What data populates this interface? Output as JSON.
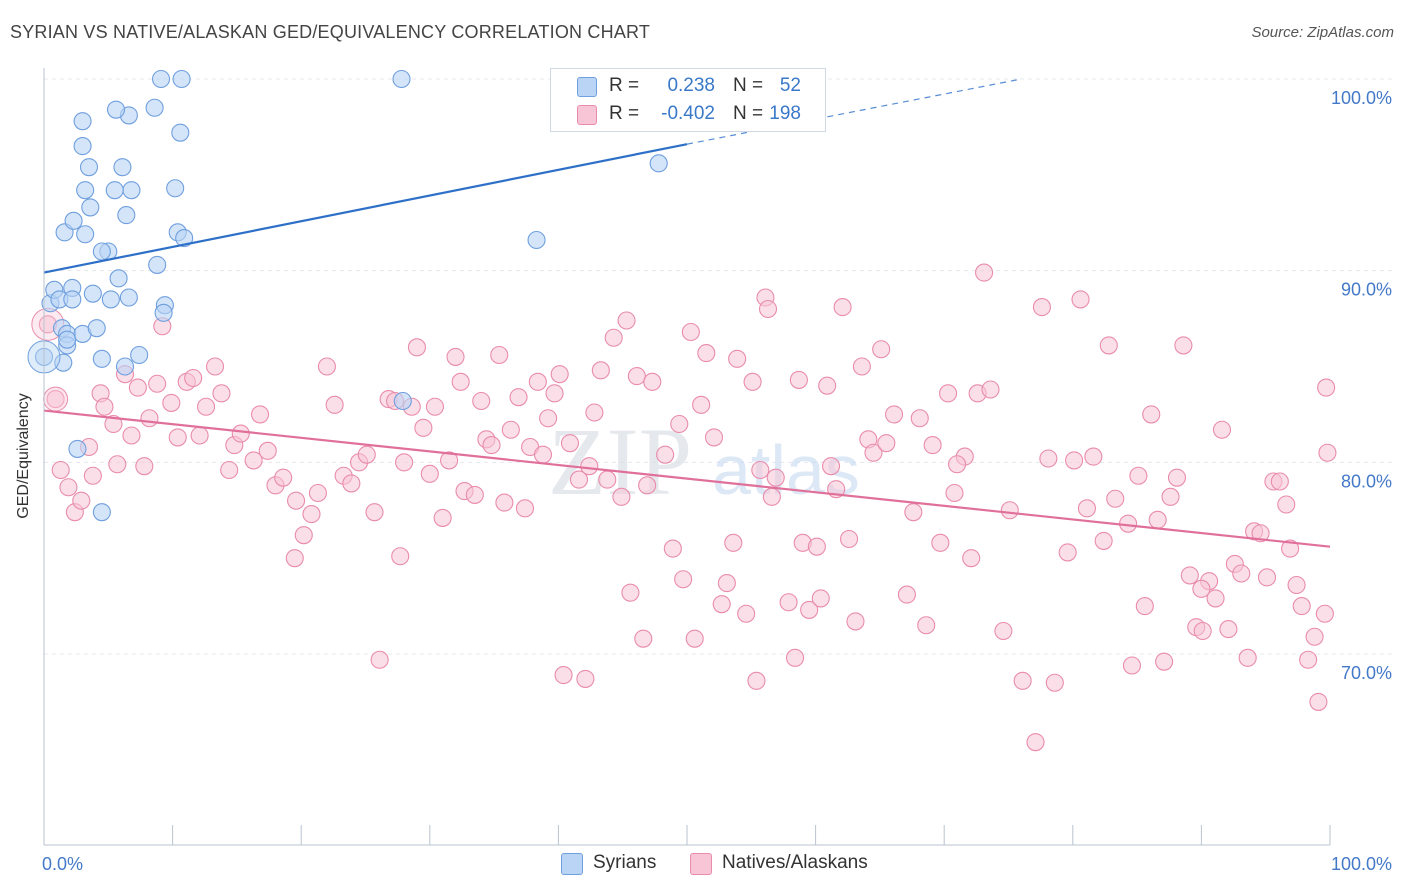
{
  "title": "SYRIAN VS NATIVE/ALASKAN GED/EQUIVALENCY CORRELATION CHART",
  "source": "Source: ZipAtlas.com",
  "watermark": {
    "part1": "ZIP",
    "part2": "atlas"
  },
  "legend": {
    "r_label": "R =",
    "n_label": "N =",
    "series": [
      {
        "r": "0.238",
        "n": "52"
      },
      {
        "r": "-0.402",
        "n": "198"
      }
    ]
  },
  "chart_data": {
    "type": "scatter",
    "title": "SYRIAN VS NATIVE/ALASKAN GED/EQUIVALENCY CORRELATION CHART",
    "xlabel": "",
    "ylabel": "GED/Equivalency",
    "xlim": [
      0,
      100
    ],
    "ylim": [
      60,
      101.5
    ],
    "x_tick_labels": [
      "0.0%",
      "100.0%"
    ],
    "y_ticks": [
      {
        "value": 100,
        "label": "100.0%"
      },
      {
        "value": 90,
        "label": "90.0%"
      },
      {
        "value": 80,
        "label": "80.0%"
      },
      {
        "value": 70,
        "label": "70.0%"
      }
    ],
    "grid": true,
    "colors": {
      "syrians_fill": "#b9d4f5",
      "syrians_edge": "#6f9fde",
      "syrians_line": "#2e70c8",
      "natives_fill": "#f8c5d6",
      "natives_edge": "#e98cab",
      "natives_line": "#e0709a",
      "axis_text": "#4479c8",
      "grid": "#e4e8ee"
    },
    "series": [
      {
        "name": "Syrians",
        "trend": {
          "x": [
            0,
            50
          ],
          "y": [
            89.9,
            96.6
          ],
          "dashed_to": [
            76,
            100
          ]
        },
        "points": [
          [
            0,
            85.5
          ],
          [
            0.5,
            88.3
          ],
          [
            0.8,
            89
          ],
          [
            1.2,
            88.5
          ],
          [
            1.4,
            87
          ],
          [
            1.8,
            86.7
          ],
          [
            1.8,
            86.1
          ],
          [
            1.5,
            85.2
          ],
          [
            2.2,
            89.1
          ],
          [
            2.2,
            88.5
          ],
          [
            1.6,
            92
          ],
          [
            2.3,
            92.6
          ],
          [
            3.2,
            91.9
          ],
          [
            2.6,
            80.7
          ],
          [
            3.0,
            86.7
          ],
          [
            3.8,
            88.8
          ],
          [
            4.1,
            87
          ],
          [
            4.5,
            85.4
          ],
          [
            5.2,
            88.5
          ],
          [
            5.8,
            89.6
          ],
          [
            6.3,
            85
          ],
          [
            6.4,
            92.9
          ],
          [
            6.6,
            88.6
          ],
          [
            7.4,
            85.6
          ],
          [
            8.8,
            90.3
          ],
          [
            9.4,
            88.2
          ],
          [
            9.3,
            87.8
          ],
          [
            10.2,
            94.3
          ],
          [
            10.4,
            92
          ],
          [
            10.9,
            91.7
          ],
          [
            9.1,
            100
          ],
          [
            10.7,
            100
          ],
          [
            27.8,
            100
          ],
          [
            10.6,
            97.2
          ],
          [
            8.6,
            98.5
          ],
          [
            6.6,
            98.1
          ],
          [
            6.8,
            94.2
          ],
          [
            5.6,
            98.4
          ],
          [
            6.1,
            95.4
          ],
          [
            3.6,
            93.3
          ],
          [
            3.2,
            94.2
          ],
          [
            3.5,
            95.4
          ],
          [
            3.0,
            96.5
          ],
          [
            3.0,
            97.8
          ],
          [
            5.5,
            94.2
          ],
          [
            5.0,
            91
          ],
          [
            4.5,
            91
          ],
          [
            4.5,
            77.4
          ],
          [
            27.9,
            83.2
          ],
          [
            47.8,
            95.6
          ],
          [
            38.3,
            91.6
          ],
          [
            1.8,
            86.4
          ]
        ]
      },
      {
        "name": "Natives/Alaskans",
        "trend": {
          "x": [
            0,
            100
          ],
          "y": [
            82.7,
            75.6
          ]
        },
        "points": [
          [
            0.3,
            87.2
          ],
          [
            0.9,
            83.3
          ],
          [
            1.3,
            79.6
          ],
          [
            1.9,
            78.7
          ],
          [
            2.4,
            77.4
          ],
          [
            2.9,
            78
          ],
          [
            3.5,
            80.8
          ],
          [
            3.8,
            79.3
          ],
          [
            4.4,
            83.6
          ],
          [
            4.7,
            82.9
          ],
          [
            5.4,
            82
          ],
          [
            5.7,
            79.9
          ],
          [
            6.3,
            84.6
          ],
          [
            6.8,
            81.4
          ],
          [
            7.3,
            83.9
          ],
          [
            7.8,
            79.8
          ],
          [
            8.2,
            82.3
          ],
          [
            8.8,
            84.1
          ],
          [
            9.2,
            87.1
          ],
          [
            9.9,
            83.1
          ],
          [
            10.4,
            81.3
          ],
          [
            11.1,
            84.2
          ],
          [
            11.6,
            84.4
          ],
          [
            12.1,
            81.4
          ],
          [
            12.6,
            82.9
          ],
          [
            13.3,
            85
          ],
          [
            13.8,
            83.6
          ],
          [
            14.4,
            79.6
          ],
          [
            14.8,
            80.9
          ],
          [
            15.3,
            81.5
          ],
          [
            16.3,
            80.1
          ],
          [
            16.8,
            82.5
          ],
          [
            17.4,
            80.6
          ],
          [
            18.0,
            78.8
          ],
          [
            18.6,
            79.2
          ],
          [
            19.5,
            75
          ],
          [
            19.6,
            78
          ],
          [
            20.2,
            76.2
          ],
          [
            20.8,
            77.3
          ],
          [
            21.3,
            78.4
          ],
          [
            22.0,
            85
          ],
          [
            22.6,
            83
          ],
          [
            23.3,
            79.3
          ],
          [
            23.9,
            78.9
          ],
          [
            24.5,
            80
          ],
          [
            25.1,
            80.4
          ],
          [
            25.7,
            77.4
          ],
          [
            26.1,
            69.7
          ],
          [
            26.8,
            83.3
          ],
          [
            27.3,
            83.2
          ],
          [
            27.7,
            75.1
          ],
          [
            28.0,
            80
          ],
          [
            28.6,
            82.9
          ],
          [
            29.0,
            86
          ],
          [
            29.5,
            81.8
          ],
          [
            30.0,
            79.4
          ],
          [
            30.4,
            82.9
          ],
          [
            31.0,
            77.1
          ],
          [
            31.5,
            80.1
          ],
          [
            32.0,
            85.5
          ],
          [
            32.4,
            84.2
          ],
          [
            32.7,
            78.5
          ],
          [
            33.5,
            78.3
          ],
          [
            34.0,
            83.2
          ],
          [
            34.4,
            81.2
          ],
          [
            34.8,
            80.9
          ],
          [
            35.4,
            85.6
          ],
          [
            35.8,
            77.9
          ],
          [
            36.3,
            81.7
          ],
          [
            36.9,
            83.4
          ],
          [
            37.4,
            77.6
          ],
          [
            37.8,
            80.8
          ],
          [
            38.4,
            84.2
          ],
          [
            38.8,
            80.4
          ],
          [
            39.2,
            82.3
          ],
          [
            39.7,
            83.6
          ],
          [
            40.1,
            84.6
          ],
          [
            40.4,
            68.9
          ],
          [
            40.9,
            81
          ],
          [
            41.6,
            79.1
          ],
          [
            42.1,
            68.7
          ],
          [
            42.4,
            79.8
          ],
          [
            42.8,
            82.6
          ],
          [
            43.3,
            84.8
          ],
          [
            43.8,
            79.1
          ],
          [
            44.3,
            86.5
          ],
          [
            44.9,
            78.2
          ],
          [
            45.3,
            87.4
          ],
          [
            45.6,
            73.2
          ],
          [
            46.1,
            84.5
          ],
          [
            46.6,
            70.8
          ],
          [
            46.9,
            78.8
          ],
          [
            47.3,
            84.2
          ],
          [
            48.3,
            80.4
          ],
          [
            48.9,
            75.5
          ],
          [
            49.4,
            82
          ],
          [
            49.7,
            73.9
          ],
          [
            50.3,
            86.8
          ],
          [
            50.6,
            70.8
          ],
          [
            51.1,
            83
          ],
          [
            51.5,
            85.7
          ],
          [
            52.1,
            81.3
          ],
          [
            52.7,
            72.6
          ],
          [
            53.1,
            73.7
          ],
          [
            53.6,
            75.8
          ],
          [
            53.9,
            85.4
          ],
          [
            54.6,
            72.1
          ],
          [
            55.1,
            84.2
          ],
          [
            55.4,
            68.6
          ],
          [
            55.7,
            79.6
          ],
          [
            56.1,
            88.6
          ],
          [
            56.3,
            88
          ],
          [
            56.6,
            78.2
          ],
          [
            56.9,
            79.2
          ],
          [
            57.9,
            72.7
          ],
          [
            58.4,
            69.8
          ],
          [
            58.7,
            84.3
          ],
          [
            59.0,
            75.8
          ],
          [
            59.5,
            72.3
          ],
          [
            60.1,
            75.6
          ],
          [
            60.4,
            72.9
          ],
          [
            60.9,
            84
          ],
          [
            61.2,
            79.8
          ],
          [
            61.6,
            78.6
          ],
          [
            62.1,
            88.1
          ],
          [
            62.6,
            76
          ],
          [
            63.1,
            71.7
          ],
          [
            63.6,
            85
          ],
          [
            64.1,
            81.2
          ],
          [
            64.5,
            80.5
          ],
          [
            65.1,
            85.9
          ],
          [
            65.5,
            81
          ],
          [
            66.1,
            82.5
          ],
          [
            67.1,
            73.1
          ],
          [
            67.6,
            77.4
          ],
          [
            68.1,
            82.3
          ],
          [
            68.6,
            71.5
          ],
          [
            69.1,
            80.9
          ],
          [
            69.7,
            75.8
          ],
          [
            70.3,
            83.6
          ],
          [
            70.8,
            78.4
          ],
          [
            71.6,
            80.3
          ],
          [
            72.1,
            75
          ],
          [
            72.6,
            83.6
          ],
          [
            73.1,
            89.9
          ],
          [
            73.6,
            83.8
          ],
          [
            74.6,
            71.2
          ],
          [
            75.1,
            77.5
          ],
          [
            76.1,
            68.6
          ],
          [
            77.1,
            65.4
          ],
          [
            77.6,
            88.1
          ],
          [
            78.1,
            80.2
          ],
          [
            78.6,
            68.5
          ],
          [
            79.6,
            75.3
          ],
          [
            80.1,
            80.1
          ],
          [
            80.6,
            88.5
          ],
          [
            81.1,
            77.6
          ],
          [
            81.6,
            80.3
          ],
          [
            82.4,
            75.9
          ],
          [
            82.8,
            86.1
          ],
          [
            83.3,
            78.1
          ],
          [
            84.3,
            76.8
          ],
          [
            84.6,
            69.4
          ],
          [
            85.1,
            79.3
          ],
          [
            85.6,
            72.5
          ],
          [
            86.1,
            82.5
          ],
          [
            86.6,
            77
          ],
          [
            87.1,
            69.6
          ],
          [
            87.6,
            78.2
          ],
          [
            88.1,
            79.2
          ],
          [
            88.6,
            86.1
          ],
          [
            89.1,
            74.1
          ],
          [
            89.6,
            71.4
          ],
          [
            90.1,
            71.2
          ],
          [
            90.6,
            73.8
          ],
          [
            91.1,
            72.9
          ],
          [
            91.6,
            81.7
          ],
          [
            92.1,
            71.3
          ],
          [
            92.6,
            74.7
          ],
          [
            93.1,
            74.2
          ],
          [
            93.6,
            69.8
          ],
          [
            94.1,
            76.4
          ],
          [
            94.6,
            76.3
          ],
          [
            95.1,
            74
          ],
          [
            95.6,
            79
          ],
          [
            96.1,
            79
          ],
          [
            96.6,
            77.8
          ],
          [
            96.9,
            75.5
          ],
          [
            97.4,
            73.6
          ],
          [
            97.8,
            72.5
          ],
          [
            98.3,
            69.7
          ],
          [
            98.8,
            70.9
          ],
          [
            99.1,
            67.5
          ],
          [
            99.6,
            72.1
          ],
          [
            99.7,
            83.9
          ],
          [
            99.8,
            80.5
          ],
          [
            90.0,
            73.4
          ],
          [
            71.0,
            79.9
          ]
        ]
      }
    ]
  },
  "bottom_legend": [
    "Syrians",
    "Natives/Alaskans"
  ]
}
